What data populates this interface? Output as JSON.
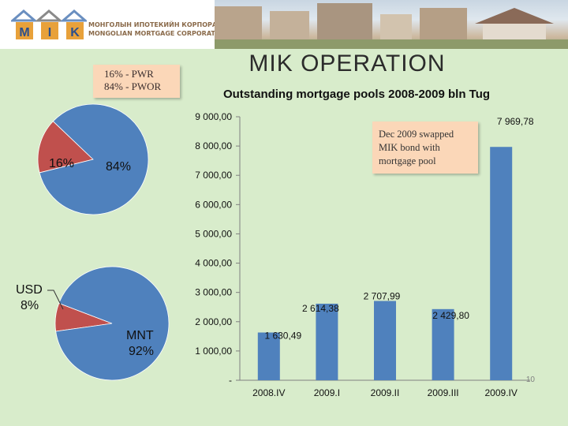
{
  "header": {
    "logo_letters": [
      "M",
      "I",
      "K"
    ],
    "org_name_mn": "МОНГОЛЫН ИПОТЕКИЙН КОРПОРАЦИ",
    "org_name_en": "MONGOLIAN MORTGAGE CORPORATION"
  },
  "slide": {
    "title": "MIK OPERATION",
    "page_number": "10"
  },
  "pie_top": {
    "legend_line1": "16% - PWR",
    "legend_line2": "84% - PWOR",
    "slices": [
      {
        "label": "16%",
        "value": 16,
        "color": "#c0504d"
      },
      {
        "label": "84%",
        "value": 84,
        "color": "#4f81bd"
      }
    ]
  },
  "pie_bottom": {
    "slices": [
      {
        "label_line1": "USD",
        "label_line2": "8%",
        "value": 8,
        "color": "#c0504d"
      },
      {
        "label_line1": "MNT",
        "label_line2": "92%",
        "value": 92,
        "color": "#4f81bd"
      }
    ]
  },
  "chart_data": {
    "type": "bar",
    "title": "Outstanding mortgage pools 2008-2009 bln Tug",
    "categories": [
      "2008.IV",
      "2009.I",
      "2009.II",
      "2009.III",
      "2009.IV"
    ],
    "values": [
      1630.49,
      2614.38,
      2707.99,
      2429.8,
      7969.78
    ],
    "data_labels": [
      "1 630,49",
      "2 614,38",
      "2 707,99",
      "2 429,80",
      "7 969,78"
    ],
    "ylim": [
      0,
      9000
    ],
    "yticks": [
      0,
      1000,
      2000,
      3000,
      4000,
      5000,
      6000,
      7000,
      8000,
      9000
    ],
    "ytick_labels": [
      "-",
      "1 000,00",
      "2 000,00",
      "3 000,00",
      "4 000,00",
      "5 000,00",
      "6 000,00",
      "7 000,00",
      "8 000,00",
      "9 000,00"
    ],
    "bar_color": "#4f81bd",
    "grid": false,
    "annotation": "Dec 2009 swapped MIK bond with mortgage pool"
  }
}
